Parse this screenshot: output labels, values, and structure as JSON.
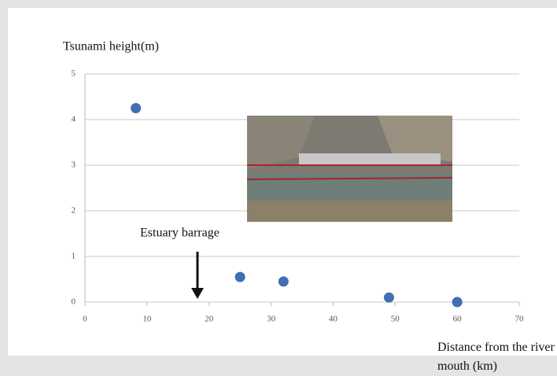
{
  "chart_data": {
    "type": "scatter",
    "y_label": "Tsunami height(m)",
    "x_label": "Distance from the river mouth (km)",
    "annotation": "Estuary barrage",
    "x": [
      8.2,
      25,
      32,
      49,
      60
    ],
    "values": [
      4.25,
      0.55,
      0.45,
      0.1,
      0
    ],
    "color": "#3f6fb5",
    "xlim": [
      0,
      70
    ],
    "xticks": [
      0,
      10,
      20,
      30,
      40,
      50,
      60,
      70
    ],
    "ylim": [
      0,
      5
    ],
    "yticks": [
      0,
      1,
      2,
      3,
      4,
      5
    ],
    "grid": true
  }
}
